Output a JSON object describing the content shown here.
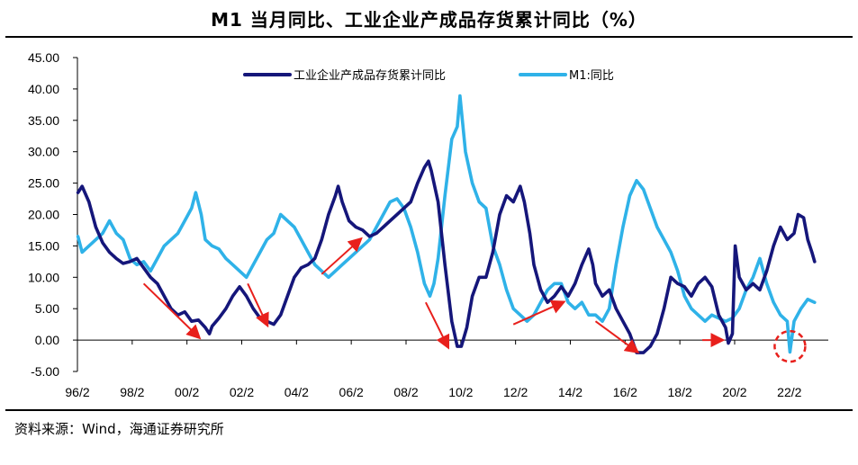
{
  "title": "M1 当月同比、工业企业产成品存货累计同比（%）",
  "source": "资料来源：Wind，海通证券研究所",
  "colors": {
    "inventory": "#15167a",
    "m1": "#2fb2e8",
    "arrow": "#e8201c",
    "circle": "#e8201c"
  },
  "chart_data": {
    "type": "line",
    "title": "M1 当月同比、工业企业产成品存货累计同比（%）",
    "ylim": [
      -5,
      45
    ],
    "y_ticks": [
      -5,
      0,
      5,
      10,
      15,
      20,
      25,
      30,
      35,
      40,
      45
    ],
    "y_tick_labels": [
      "-5.00",
      "0.00",
      "5.00",
      "10.00",
      "15.00",
      "20.00",
      "25.00",
      "30.00",
      "35.00",
      "40.00",
      "45.00"
    ],
    "xlim": [
      1996.08,
      2023.5
    ],
    "x_ticks": [
      1996.08,
      1998.08,
      2000.08,
      2002.08,
      2004.08,
      2006.08,
      2008.08,
      2010.08,
      2012.08,
      2014.08,
      2016.08,
      2018.08,
      2020.08,
      2022.08
    ],
    "x_tick_labels": [
      "96/2",
      "98/2",
      "00/2",
      "02/2",
      "04/2",
      "06/2",
      "08/2",
      "10/2",
      "12/2",
      "14/2",
      "16/2",
      "18/2",
      "20/2",
      "22/2"
    ],
    "legend": "top-center",
    "series": [
      {
        "name": "工业企业产成品存货累计同比",
        "color_key": "inventory",
        "points": [
          [
            1996.1,
            23.5
          ],
          [
            1996.25,
            24.5
          ],
          [
            1996.5,
            22
          ],
          [
            1996.75,
            18
          ],
          [
            1997.0,
            15.5
          ],
          [
            1997.25,
            14
          ],
          [
            1997.5,
            13
          ],
          [
            1997.75,
            12.2
          ],
          [
            1998.0,
            12.5
          ],
          [
            1998.25,
            13
          ],
          [
            1998.5,
            11.5
          ],
          [
            1998.75,
            10
          ],
          [
            1999.0,
            9
          ],
          [
            1999.25,
            7
          ],
          [
            1999.5,
            5
          ],
          [
            1999.75,
            4
          ],
          [
            2000.0,
            4.5
          ],
          [
            2000.25,
            3
          ],
          [
            2000.5,
            3.2
          ],
          [
            2000.75,
            2
          ],
          [
            2000.9,
            1
          ],
          [
            2001.0,
            2.2
          ],
          [
            2001.25,
            3.5
          ],
          [
            2001.5,
            5
          ],
          [
            2001.75,
            7
          ],
          [
            2002.0,
            8.5
          ],
          [
            2002.25,
            7
          ],
          [
            2002.5,
            5
          ],
          [
            2002.75,
            3.5
          ],
          [
            2003.0,
            3
          ],
          [
            2003.25,
            2.5
          ],
          [
            2003.5,
            4
          ],
          [
            2003.75,
            7
          ],
          [
            2004.0,
            10
          ],
          [
            2004.25,
            11.5
          ],
          [
            2004.5,
            12
          ],
          [
            2004.75,
            13
          ],
          [
            2005.0,
            16
          ],
          [
            2005.25,
            20
          ],
          [
            2005.5,
            23
          ],
          [
            2005.6,
            24.5
          ],
          [
            2005.75,
            22
          ],
          [
            2006.0,
            19
          ],
          [
            2006.25,
            18
          ],
          [
            2006.5,
            17.5
          ],
          [
            2006.75,
            16.5
          ],
          [
            2007.0,
            17
          ],
          [
            2007.25,
            18
          ],
          [
            2007.5,
            19
          ],
          [
            2007.75,
            20
          ],
          [
            2008.0,
            21
          ],
          [
            2008.25,
            22
          ],
          [
            2008.5,
            25
          ],
          [
            2008.75,
            27.5
          ],
          [
            2008.9,
            28.5
          ],
          [
            2009.0,
            27
          ],
          [
            2009.25,
            22
          ],
          [
            2009.5,
            12
          ],
          [
            2009.75,
            3
          ],
          [
            2009.95,
            -1
          ],
          [
            2010.1,
            -1
          ],
          [
            2010.3,
            2
          ],
          [
            2010.5,
            7
          ],
          [
            2010.75,
            10
          ],
          [
            2011.0,
            10
          ],
          [
            2011.25,
            14
          ],
          [
            2011.5,
            20
          ],
          [
            2011.75,
            23
          ],
          [
            2012.0,
            22
          ],
          [
            2012.25,
            24.5
          ],
          [
            2012.4,
            22
          ],
          [
            2012.6,
            17
          ],
          [
            2012.75,
            12
          ],
          [
            2013.0,
            8
          ],
          [
            2013.25,
            6
          ],
          [
            2013.5,
            7
          ],
          [
            2013.75,
            8.5
          ],
          [
            2014.0,
            7
          ],
          [
            2014.25,
            9
          ],
          [
            2014.5,
            12
          ],
          [
            2014.75,
            14.5
          ],
          [
            2014.9,
            12
          ],
          [
            2015.0,
            9
          ],
          [
            2015.25,
            7
          ],
          [
            2015.5,
            8
          ],
          [
            2015.75,
            5
          ],
          [
            2016.0,
            3
          ],
          [
            2016.25,
            1
          ],
          [
            2016.5,
            -2
          ],
          [
            2016.75,
            -2
          ],
          [
            2017.0,
            -1
          ],
          [
            2017.25,
            1
          ],
          [
            2017.5,
            5
          ],
          [
            2017.75,
            10
          ],
          [
            2018.0,
            9
          ],
          [
            2018.25,
            8.5
          ],
          [
            2018.5,
            7
          ],
          [
            2018.75,
            9
          ],
          [
            2019.0,
            10
          ],
          [
            2019.25,
            8.5
          ],
          [
            2019.5,
            4
          ],
          [
            2019.75,
            2
          ],
          [
            2019.85,
            -0.5
          ],
          [
            2020.0,
            1
          ],
          [
            2020.1,
            15
          ],
          [
            2020.25,
            10
          ],
          [
            2020.5,
            8
          ],
          [
            2020.75,
            9
          ],
          [
            2021.0,
            8
          ],
          [
            2021.25,
            11
          ],
          [
            2021.5,
            15
          ],
          [
            2021.75,
            18
          ],
          [
            2022.0,
            16
          ],
          [
            2022.25,
            17
          ],
          [
            2022.4,
            20
          ],
          [
            2022.6,
            19.5
          ],
          [
            2022.75,
            16
          ],
          [
            2022.9,
            14
          ],
          [
            2023.0,
            12.5
          ]
        ]
      },
      {
        "name": "M1:同比",
        "color_key": "m1",
        "points": [
          [
            1996.1,
            16.5
          ],
          [
            1996.25,
            14
          ],
          [
            1996.5,
            15
          ],
          [
            1996.75,
            16
          ],
          [
            1997.0,
            17
          ],
          [
            1997.25,
            19
          ],
          [
            1997.5,
            17
          ],
          [
            1997.75,
            16
          ],
          [
            1998.0,
            13
          ],
          [
            1998.25,
            12
          ],
          [
            1998.5,
            12.5
          ],
          [
            1998.75,
            11
          ],
          [
            1999.0,
            13
          ],
          [
            1999.25,
            15
          ],
          [
            1999.5,
            16
          ],
          [
            1999.75,
            17
          ],
          [
            2000.0,
            19
          ],
          [
            2000.25,
            21
          ],
          [
            2000.4,
            23.5
          ],
          [
            2000.6,
            20
          ],
          [
            2000.75,
            16
          ],
          [
            2001.0,
            15
          ],
          [
            2001.25,
            14.5
          ],
          [
            2001.5,
            13
          ],
          [
            2001.75,
            12
          ],
          [
            2002.0,
            11
          ],
          [
            2002.25,
            10
          ],
          [
            2002.5,
            12
          ],
          [
            2002.75,
            14
          ],
          [
            2003.0,
            16
          ],
          [
            2003.25,
            17
          ],
          [
            2003.5,
            20
          ],
          [
            2003.75,
            19
          ],
          [
            2004.0,
            18
          ],
          [
            2004.25,
            16
          ],
          [
            2004.5,
            14
          ],
          [
            2004.75,
            12
          ],
          [
            2005.0,
            11
          ],
          [
            2005.25,
            10
          ],
          [
            2005.5,
            11
          ],
          [
            2005.75,
            12
          ],
          [
            2006.0,
            13
          ],
          [
            2006.25,
            14
          ],
          [
            2006.5,
            15
          ],
          [
            2006.75,
            16
          ],
          [
            2007.0,
            18
          ],
          [
            2007.25,
            20
          ],
          [
            2007.5,
            22
          ],
          [
            2007.75,
            22.5
          ],
          [
            2008.0,
            21
          ],
          [
            2008.25,
            18
          ],
          [
            2008.5,
            14
          ],
          [
            2008.75,
            9
          ],
          [
            2008.95,
            7
          ],
          [
            2009.1,
            9
          ],
          [
            2009.25,
            13
          ],
          [
            2009.5,
            23
          ],
          [
            2009.75,
            32
          ],
          [
            2009.95,
            34
          ],
          [
            2010.05,
            38.9
          ],
          [
            2010.25,
            30
          ],
          [
            2010.5,
            25
          ],
          [
            2010.75,
            22
          ],
          [
            2011.0,
            21
          ],
          [
            2011.25,
            15
          ],
          [
            2011.5,
            12
          ],
          [
            2011.75,
            8
          ],
          [
            2012.0,
            5
          ],
          [
            2012.25,
            4
          ],
          [
            2012.5,
            3
          ],
          [
            2012.75,
            4
          ],
          [
            2013.0,
            6
          ],
          [
            2013.25,
            8
          ],
          [
            2013.5,
            9
          ],
          [
            2013.75,
            9
          ],
          [
            2014.0,
            6
          ],
          [
            2014.25,
            5
          ],
          [
            2014.5,
            6
          ],
          [
            2014.75,
            4
          ],
          [
            2015.0,
            4
          ],
          [
            2015.25,
            3
          ],
          [
            2015.5,
            5
          ],
          [
            2015.75,
            12
          ],
          [
            2016.0,
            18
          ],
          [
            2016.25,
            23
          ],
          [
            2016.5,
            25.4
          ],
          [
            2016.75,
            24
          ],
          [
            2017.0,
            21
          ],
          [
            2017.25,
            18
          ],
          [
            2017.5,
            16
          ],
          [
            2017.75,
            14
          ],
          [
            2018.0,
            11
          ],
          [
            2018.25,
            7
          ],
          [
            2018.5,
            5
          ],
          [
            2018.75,
            4
          ],
          [
            2019.0,
            3
          ],
          [
            2019.25,
            4
          ],
          [
            2019.5,
            3.5
          ],
          [
            2019.75,
            3
          ],
          [
            2020.0,
            3.5
          ],
          [
            2020.25,
            5
          ],
          [
            2020.5,
            8
          ],
          [
            2020.75,
            10
          ],
          [
            2021.0,
            13
          ],
          [
            2021.25,
            9
          ],
          [
            2021.5,
            6
          ],
          [
            2021.75,
            4
          ],
          [
            2022.0,
            3
          ],
          [
            2022.1,
            -1.9
          ],
          [
            2022.25,
            3
          ],
          [
            2022.5,
            5
          ],
          [
            2022.75,
            6.5
          ],
          [
            2023.0,
            6
          ]
        ]
      }
    ],
    "arrows": [
      {
        "from": [
          1998.5,
          9.0
        ],
        "to": [
          2000.5,
          0.5
        ]
      },
      {
        "from": [
          2002.3,
          9.0
        ],
        "to": [
          2003.0,
          2.5
        ]
      },
      {
        "from": [
          2005.0,
          10.5
        ],
        "to": [
          2006.4,
          16.0
        ]
      },
      {
        "from": [
          2008.8,
          6.0
        ],
        "to": [
          2009.6,
          -1.0
        ]
      },
      {
        "from": [
          2012.0,
          2.5
        ],
        "to": [
          2013.8,
          6.0
        ]
      },
      {
        "from": [
          2015.0,
          3.0
        ],
        "to": [
          2016.5,
          -1.8
        ]
      },
      {
        "from": [
          2018.9,
          0.0
        ],
        "to": [
          2019.6,
          0.0
        ]
      }
    ],
    "highlight_circle": {
      "x": 2022.1,
      "y": -1.0
    }
  }
}
